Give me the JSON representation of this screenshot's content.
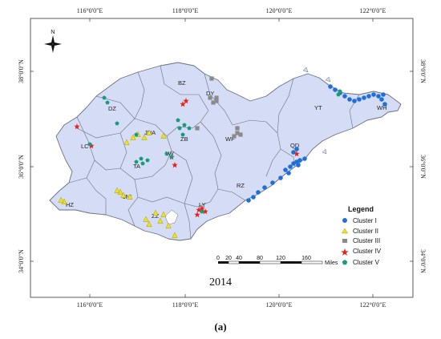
{
  "map": {
    "year": "2014",
    "top_lon_labels": [
      "116°0'0\"E",
      "118°0'0\"E",
      "120°0'0\"E",
      "122°0'0\"E"
    ],
    "bottom_lon_labels": [
      "116°0'0\"E",
      "118°0'0\"E",
      "120°0'0\"E",
      "122°0'0\"E"
    ],
    "left_lat_labels": [
      "38°0'0\"N",
      "36°0'0\"N",
      "34°0'0\"N"
    ],
    "right_lat_labels": [
      "38°0'0\"N",
      "36°0'0\"N",
      "34°0'0\"N"
    ],
    "north_label": "N",
    "cities": [
      "BZ",
      "DY",
      "DZ",
      "YT",
      "WH",
      "JNA",
      "ZB",
      "WF",
      "LC",
      "QD",
      "LW",
      "TA",
      "RZ",
      "HZ",
      "JNI",
      "ZZ",
      "LY"
    ],
    "legend": {
      "title": "Legend",
      "items": [
        {
          "label": "Cluster I",
          "color": "#1f6fd6",
          "shape": "circle"
        },
        {
          "label": "Cluster II",
          "color": "#f2e21a",
          "shape": "triangle"
        },
        {
          "label": "Cluster III",
          "color": "#8a8a8a",
          "shape": "square"
        },
        {
          "label": "Cluster IV",
          "color": "#e8201a",
          "shape": "star"
        },
        {
          "label": "Cluster V",
          "color": "#1a9a7a",
          "shape": "pentagon"
        }
      ]
    },
    "scale": {
      "ticks": [
        "0",
        "20",
        "40",
        "80",
        "120",
        "160"
      ],
      "unit": "Miles"
    },
    "colors": {
      "land": "#d5dcf5",
      "border": "#6b6f80"
    }
  },
  "caption": "(a)"
}
